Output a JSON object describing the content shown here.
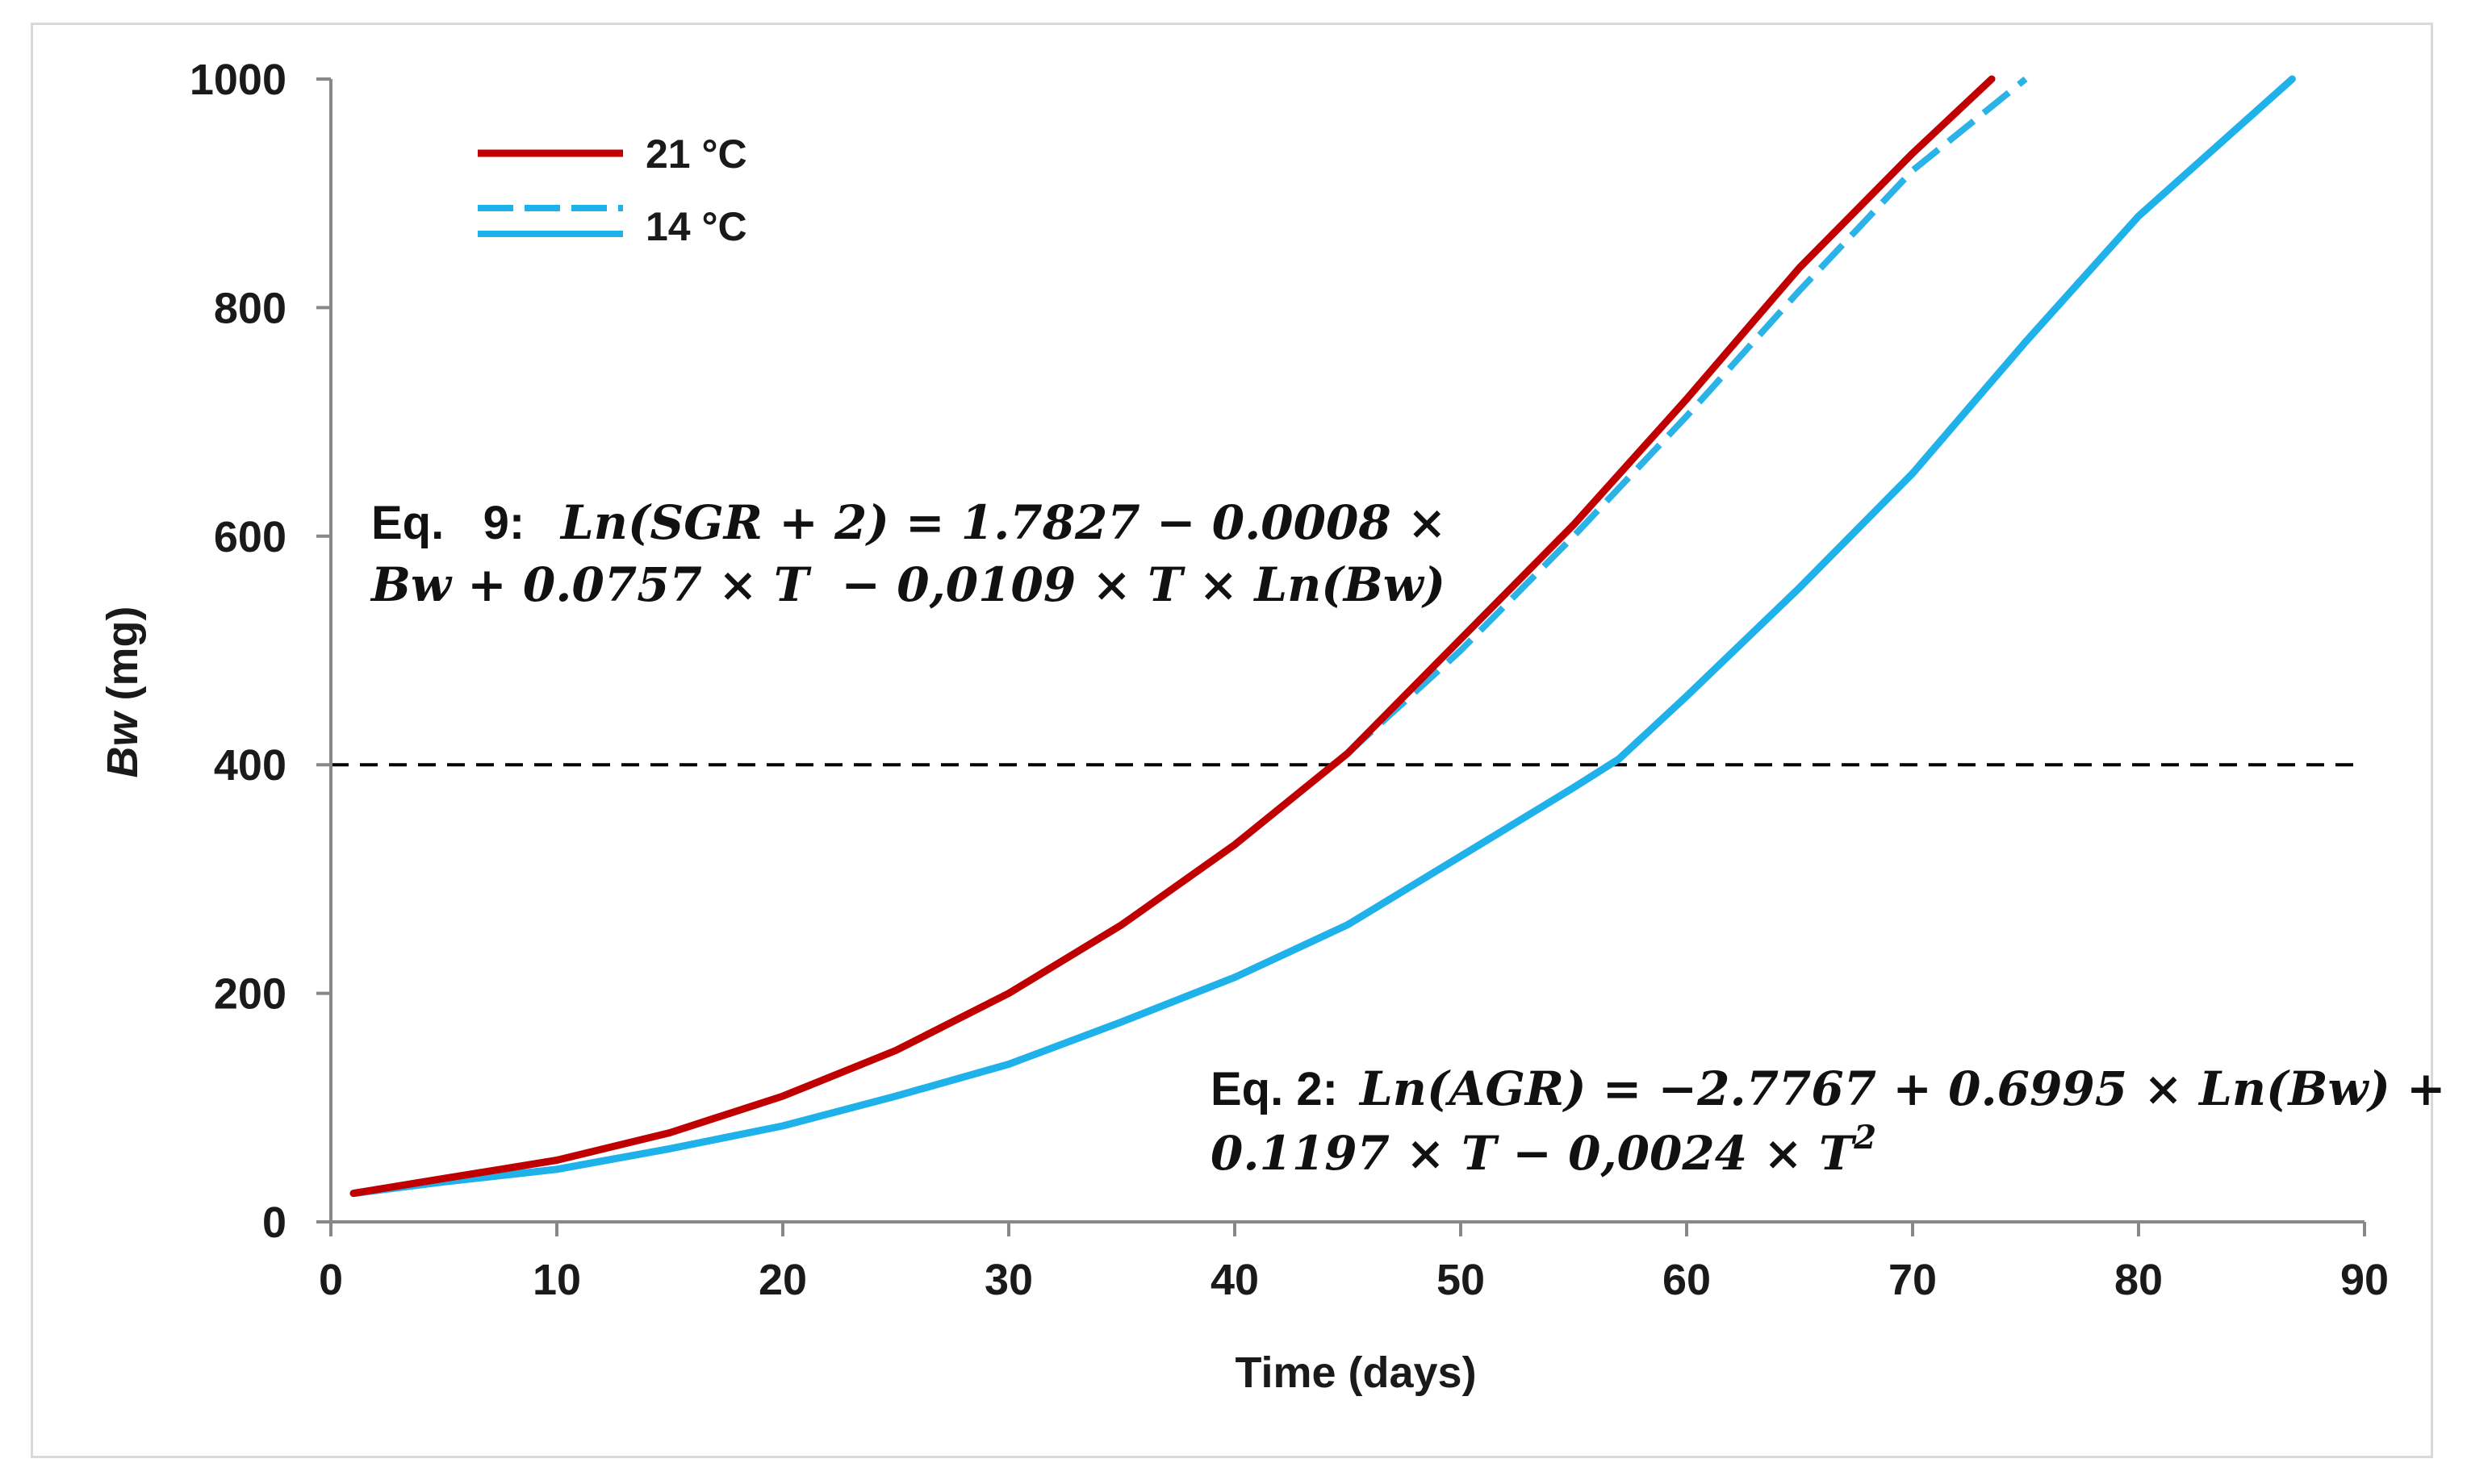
{
  "chart_data": {
    "type": "line",
    "title": "",
    "xlabel": "Time (days)",
    "ylabel_italic": "Bw",
    "ylabel_rest": " (mg)",
    "xlim": [
      0,
      90
    ],
    "ylim": [
      0,
      1000
    ],
    "xticks": [
      0,
      10,
      20,
      30,
      40,
      50,
      60,
      70,
      80,
      90
    ],
    "yticks": [
      0,
      200,
      400,
      600,
      800,
      1000
    ],
    "grid": false,
    "legend_position": "top-left",
    "reference_line": {
      "y": 400,
      "style": "dashed",
      "color": "#000000"
    },
    "series": [
      {
        "name": "21 °C",
        "color": "#c00000",
        "style": "solid",
        "x": [
          1,
          5,
          10,
          15,
          20,
          25,
          30,
          35,
          40,
          45,
          50,
          55,
          60,
          65,
          70,
          73.5
        ],
        "y": [
          25,
          38,
          54,
          78,
          110,
          150,
          200,
          260,
          330,
          410,
          510,
          610,
          720,
          835,
          935,
          1000
        ]
      },
      {
        "name": "14 °C (dashed)",
        "color": "#2bb3e8",
        "style": "dashed",
        "x": [
          45,
          50,
          55,
          60,
          65,
          70,
          75
        ],
        "y": [
          410,
          500,
          600,
          705,
          815,
          920,
          1000
        ]
      },
      {
        "name": "14 °C",
        "color": "#1fb2ea",
        "style": "solid",
        "x": [
          1,
          5,
          10,
          15,
          20,
          25,
          30,
          35,
          40,
          45,
          50,
          55,
          57,
          60,
          65,
          70,
          75,
          80,
          86.8
        ],
        "y": [
          25,
          35,
          46,
          64,
          84,
          110,
          138,
          175,
          214,
          260,
          320,
          380,
          405,
          460,
          555,
          655,
          770,
          880,
          1000
        ]
      }
    ],
    "legend": [
      {
        "label": "21 °C",
        "color": "#c00000",
        "style": "solid"
      },
      {
        "label": "14 °C",
        "color": "#1fb2ea",
        "style": "dashed+solid"
      }
    ],
    "annotations": {
      "eq9_prefix": "Eq.   9:",
      "eq9_line1": "Ln(SGR + 2) = 1.7827 − 0.0008 ×",
      "eq9_line2": "Bw + 0.0757 × T  − 0,0109 × T × Ln(Bw)",
      "eq2_prefix": "Eq. 2:",
      "eq2_line1": "Ln(AGR) = −2.7767 + 0.6995 × Ln(Bw) +",
      "eq2_line2": "0.1197 × T − 0,0024 × T",
      "eq2_sup": "2"
    }
  }
}
